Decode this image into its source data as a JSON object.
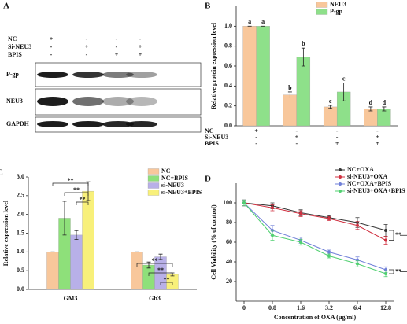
{
  "blot": {
    "panel": "A",
    "conditions": [
      {
        "label": "NC",
        "signs": [
          "+",
          "-",
          "-",
          "-"
        ]
      },
      {
        "label": "Si-NEU3",
        "signs": [
          "-",
          "+",
          "-",
          "+"
        ]
      },
      {
        "label": "BPIS",
        "signs": [
          "-",
          "-",
          "+",
          "+"
        ]
      }
    ],
    "bands": [
      "P-gp",
      "NEU3",
      "GAPDH"
    ]
  },
  "chart_data": [
    {
      "type": "bar",
      "panel": "B",
      "y_label": "Relative protein expression level",
      "categories": [
        null,
        null,
        null,
        null
      ],
      "series": [
        {
          "name": "NEU3",
          "color": "#f8c79b",
          "values": [
            1.0,
            0.31,
            0.19,
            0.17
          ],
          "errors": [
            0.0,
            0.03,
            0.015,
            0.02
          ],
          "annotations": [
            "a",
            "b",
            "c",
            "d"
          ]
        },
        {
          "name": "P-gp",
          "color": "#8ee08a",
          "values": [
            1.0,
            0.69,
            0.34,
            0.17
          ],
          "errors": [
            0.0,
            0.09,
            0.09,
            0.02
          ],
          "annotations": [
            "a",
            "b",
            "c",
            "d"
          ]
        }
      ],
      "ylim": [
        0,
        1.2
      ],
      "yticks": [
        {
          "value": 0,
          "label": "0.0"
        },
        {
          "value": 0.2,
          "label": "0.2"
        },
        {
          "value": 0.4,
          "label": "0.4"
        },
        {
          "value": 0.6,
          "label": "0.6"
        },
        {
          "value": 0.8,
          "label": "0.8"
        },
        {
          "value": 1,
          "label": "1.0"
        }
      ],
      "condition_table": [
        {
          "label": "NC",
          "signs": [
            "+",
            "-",
            "-",
            "-"
          ]
        },
        {
          "label": "Si-NEU3",
          "signs": [
            "-",
            "+",
            "-",
            "+"
          ]
        },
        {
          "label": "BPIS",
          "signs": [
            "-",
            "-",
            "+",
            "+"
          ]
        }
      ]
    },
    {
      "type": "bar",
      "panel": "C",
      "y_label": "Relative expression level",
      "categories": [
        "GM3",
        "Gb3"
      ],
      "series": [
        {
          "name": "NC",
          "color": "#f8c79b",
          "values": [
            1.0,
            1.0
          ],
          "errors": [
            0.0,
            0.0
          ]
        },
        {
          "name": "NC+BPIS",
          "color": "#8ee07a",
          "values": [
            1.9,
            0.65
          ],
          "errors": [
            0.45,
            0.08
          ]
        },
        {
          "name": "si-NEU3",
          "color": "#b8b0e8",
          "values": [
            1.45,
            0.87
          ],
          "errors": [
            0.12,
            0.07
          ]
        },
        {
          "name": "si-NEU3+BPIS",
          "color": "#f8f07a",
          "values": [
            2.62,
            0.4
          ],
          "errors": [
            0.25,
            0.04
          ]
        }
      ],
      "ylim": [
        0,
        3
      ],
      "yticks": [
        {
          "value": 0,
          "label": "0.0"
        },
        0.5,
        {
          "value": 1,
          "label": "1.0"
        },
        1.5,
        {
          "value": 2,
          "label": "2.0"
        },
        2.5,
        {
          "value": 3,
          "label": "3.0"
        }
      ],
      "significance_labels": [
        "**",
        "**",
        "**",
        "**",
        "**",
        "**"
      ]
    },
    {
      "type": "line",
      "panel": "D",
      "y_label": "Cell Viability (% of control)",
      "x_label": "Concentration of OXA (μg/ml)",
      "categories": [
        "0",
        "0.8",
        "1.6",
        "3.2",
        "6.4",
        "12.8"
      ],
      "series": [
        {
          "name": "NC+OXA",
          "color": "#333333",
          "values": [
            100,
            97,
            90,
            85,
            80,
            72
          ],
          "errors": [
            3,
            3,
            3,
            2,
            5,
            6
          ]
        },
        {
          "name": "si-NEU3+OXA",
          "color": "#d03040",
          "values": [
            100,
            95,
            89,
            84,
            77,
            62
          ],
          "errors": [
            3,
            3,
            3,
            2,
            4,
            4
          ]
        },
        {
          "name": "NC+OXA+BPIS",
          "color": "#6f7fd8",
          "values": [
            100,
            72,
            62,
            50,
            42,
            32
          ],
          "errors": [
            3,
            5,
            3,
            2,
            3,
            3
          ]
        },
        {
          "name": "si-NEU3+OXA+BPIS",
          "color": "#50d070",
          "values": [
            100,
            67,
            60,
            46,
            38,
            28
          ],
          "errors": [
            3,
            5,
            3,
            2,
            3,
            3
          ]
        }
      ],
      "ylim": [
        0,
        120
      ],
      "yticks": [
        20,
        40,
        60,
        80,
        100
      ],
      "significance_labels": [
        "**",
        "**",
        "**"
      ]
    }
  ]
}
